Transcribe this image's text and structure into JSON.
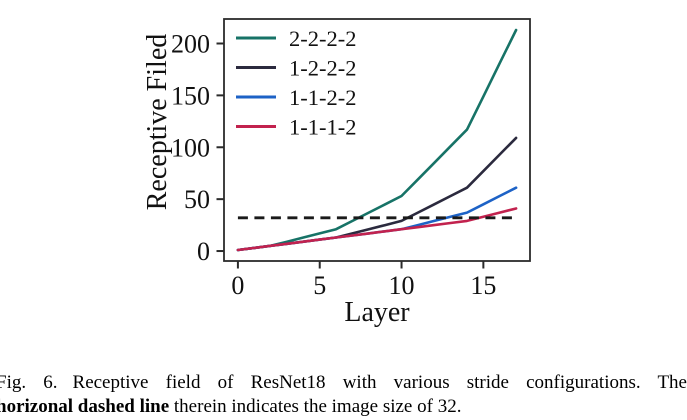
{
  "chart_data": {
    "type": "line",
    "title": "",
    "xlabel": "Layer",
    "ylabel": "Receptive Filed",
    "x": [
      0,
      1,
      2,
      3,
      4,
      5,
      6,
      7,
      8,
      9,
      10,
      11,
      12,
      13,
      14,
      15,
      16,
      17
    ],
    "series": [
      {
        "name": "2-2-2-2",
        "color": "#177367",
        "values": [
          1,
          3,
          5,
          9,
          13,
          17,
          21,
          29,
          37,
          45,
          53,
          69,
          85,
          101,
          117,
          149,
          181,
          213
        ]
      },
      {
        "name": "1-2-2-2",
        "color": "#2b2a3e",
        "values": [
          1,
          3,
          5,
          7,
          9,
          11,
          13,
          17,
          21,
          25,
          29,
          37,
          45,
          53,
          61,
          77,
          93,
          109
        ]
      },
      {
        "name": "1-1-2-2",
        "color": "#1d62c6",
        "values": [
          1,
          3,
          5,
          7,
          9,
          11,
          13,
          15,
          17,
          19,
          21,
          25,
          29,
          33,
          37,
          45,
          53,
          61
        ]
      },
      {
        "name": "1-1-1-2",
        "color": "#c2224e",
        "values": [
          1,
          3,
          5,
          7,
          9,
          11,
          13,
          15,
          17,
          19,
          21,
          23,
          25,
          27,
          29,
          33,
          37,
          41
        ]
      }
    ],
    "dashed_line": {
      "y": 32,
      "x_start": 0,
      "x_end": 17,
      "color": "#1a1a1a",
      "style": "dashed",
      "meaning": "image size of 32"
    },
    "xticks": [
      0,
      5,
      10,
      15
    ],
    "yticks": [
      0,
      50,
      100,
      150,
      200
    ],
    "xlim": [
      -0.85,
      17.85
    ],
    "ylim": [
      -9.6,
      223.6
    ],
    "grid": false,
    "legend_position": "upper left",
    "axis_color": "#2b2b2b"
  },
  "caption": {
    "fig_label": "Fig. 6.",
    "line1_rest": "Receptive field of ResNet18 with various stride configurations. The",
    "bold": "horizonal dashed line",
    "line2_rest": " therein indicates the image size of 32."
  }
}
